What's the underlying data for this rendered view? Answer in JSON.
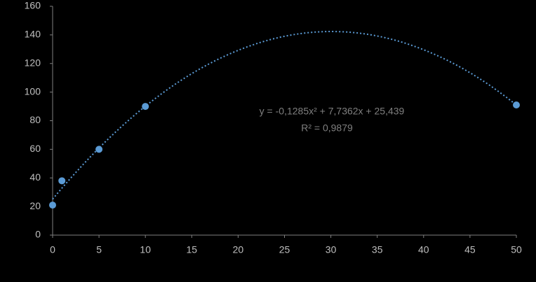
{
  "chart_data": {
    "type": "scatter",
    "x": [
      0,
      1,
      5,
      10,
      50
    ],
    "values": [
      21,
      38,
      60,
      90,
      91
    ],
    "color": "#5b9bd5",
    "trendline": {
      "kind": "polynomial",
      "order": 2,
      "color": "#5b9bd5"
    },
    "annotations": [
      "y = -0,1285x² + 7,7362x + 25,439",
      "R² = 0,9879"
    ],
    "xlim": [
      0,
      50
    ],
    "xticks": [
      0,
      5,
      10,
      15,
      20,
      25,
      30,
      35,
      40,
      45,
      50
    ],
    "ylim": [
      0,
      160
    ],
    "yticks": [
      0,
      20,
      40,
      60,
      80,
      100,
      120,
      140,
      160
    ],
    "grid": false
  }
}
